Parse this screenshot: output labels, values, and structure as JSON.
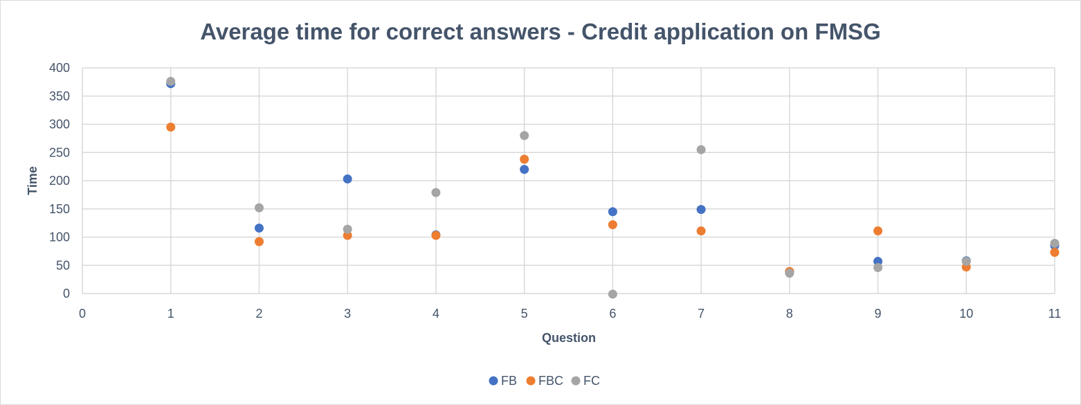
{
  "chart_data": {
    "type": "scatter",
    "title": "Average time for correct answers - Credit application on FMSG",
    "xlabel": "Question",
    "ylabel": "Time",
    "xlim": [
      0,
      11
    ],
    "ylim": [
      0,
      400
    ],
    "xticks": [
      0,
      1,
      2,
      3,
      4,
      5,
      6,
      7,
      8,
      9,
      10,
      11
    ],
    "yticks": [
      0,
      50,
      100,
      150,
      200,
      250,
      300,
      350,
      400
    ],
    "grid": true,
    "legend_position": "bottom",
    "series": [
      {
        "name": "FB",
        "color": "#4472c4",
        "x": [
          1,
          2,
          3,
          4,
          5,
          6,
          7,
          8,
          9,
          10,
          11
        ],
        "y": [
          372,
          116,
          203,
          104,
          220,
          145,
          149,
          39,
          57,
          58,
          85
        ]
      },
      {
        "name": "FBC",
        "color": "#ed7d31",
        "x": [
          1,
          2,
          3,
          4,
          5,
          6,
          7,
          8,
          9,
          10,
          11
        ],
        "y": [
          295,
          92,
          103,
          103,
          238,
          122,
          111,
          39,
          111,
          47,
          73
        ]
      },
      {
        "name": "FC",
        "color": "#a5a5a5",
        "x": [
          1,
          2,
          3,
          4,
          5,
          6,
          7,
          8,
          9,
          10,
          11
        ],
        "y": [
          376,
          152,
          114,
          179,
          280,
          -1,
          255,
          36,
          46,
          57,
          89
        ]
      }
    ]
  }
}
